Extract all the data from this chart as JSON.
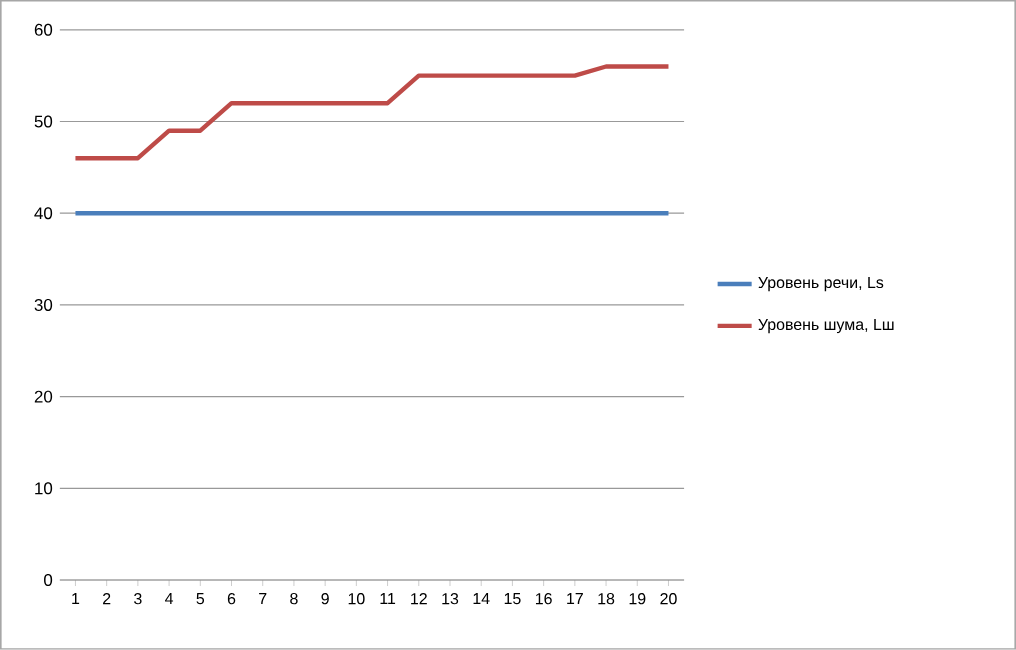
{
  "chart_data": {
    "type": "line",
    "categories": [
      "1",
      "2",
      "3",
      "4",
      "5",
      "6",
      "7",
      "8",
      "9",
      "10",
      "11",
      "12",
      "13",
      "14",
      "15",
      "16",
      "17",
      "18",
      "19",
      "20"
    ],
    "series": [
      {
        "name": "Уровень речи, Ls",
        "color": "#4a7ebb",
        "values": [
          40,
          40,
          40,
          40,
          40,
          40,
          40,
          40,
          40,
          40,
          40,
          40,
          40,
          40,
          40,
          40,
          40,
          40,
          40,
          40
        ]
      },
      {
        "name": "Уровень шума, Lш",
        "color": "#be4b48",
        "values": [
          46,
          46,
          46,
          49,
          49,
          52,
          52,
          52,
          52,
          52,
          52,
          55,
          55,
          55,
          55,
          55,
          55,
          56,
          56,
          56
        ]
      }
    ],
    "ylim": [
      0,
      60
    ],
    "yticks": [
      0,
      10,
      20,
      30,
      40,
      50,
      60
    ],
    "grid": "y",
    "legend": "right",
    "marker": "none",
    "line_style": "solid"
  }
}
